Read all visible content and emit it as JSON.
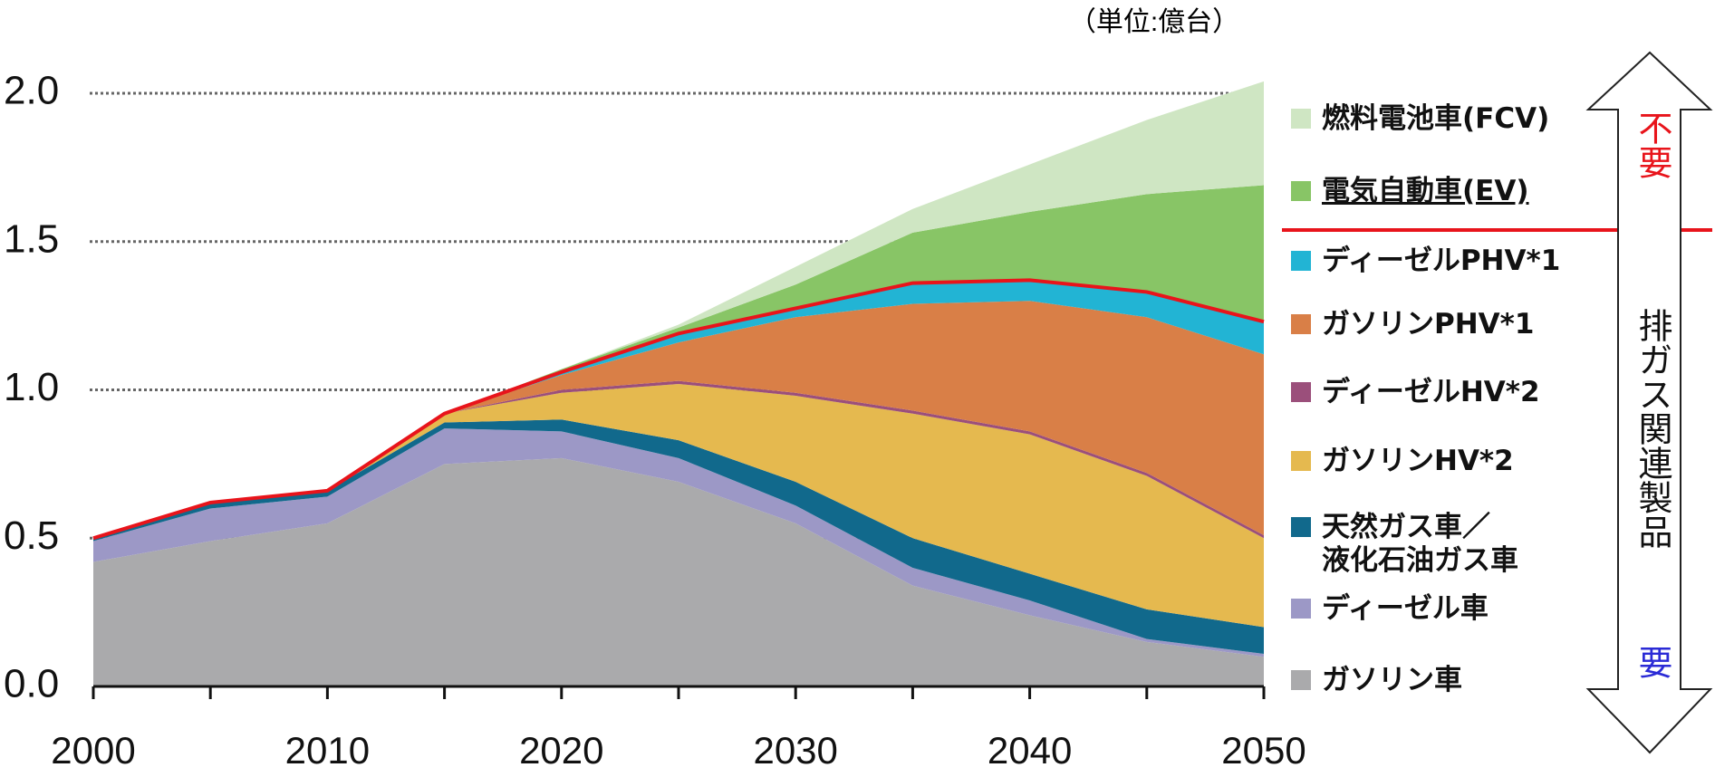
{
  "chart_data": {
    "type": "stacked_area",
    "unit_label": "（単位:億台）",
    "x": [
      2000,
      2005,
      2010,
      2015,
      2020,
      2025,
      2030,
      2035,
      2040,
      2045,
      2050
    ],
    "xlim": [
      2000,
      2050
    ],
    "xticks": [
      2000,
      2010,
      2020,
      2030,
      2040,
      2050
    ],
    "ylim": [
      0,
      2
    ],
    "yticks": [
      {
        "value": 0,
        "label": "0.0"
      },
      0.5,
      {
        "value": 1,
        "label": "1.0"
      },
      1.5,
      {
        "value": 2,
        "label": "2.0"
      }
    ],
    "grid": true,
    "series": [
      {
        "name": "ガソリン車",
        "color": "#aaaaac",
        "values": [
          0.42,
          0.49,
          0.55,
          0.75,
          0.77,
          0.69,
          0.55,
          0.34,
          0.24,
          0.15,
          0.1
        ]
      },
      {
        "name": "ディーゼル車",
        "color": "#9c98c6",
        "values": [
          0.07,
          0.11,
          0.09,
          0.12,
          0.09,
          0.08,
          0.06,
          0.06,
          0.05,
          0.01,
          0.01
        ]
      },
      {
        "name": "天然ガス車／\n液化石油ガス車",
        "color": "#11698c",
        "values": [
          0.01,
          0.02,
          0.02,
          0.02,
          0.04,
          0.06,
          0.08,
          0.1,
          0.09,
          0.1,
          0.09
        ]
      },
      {
        "name": "ガソリンHV*2",
        "color": "#e5b94f",
        "values": [
          0,
          0,
          0,
          0.03,
          0.09,
          0.19,
          0.29,
          0.42,
          0.47,
          0.45,
          0.3
        ]
      },
      {
        "name": "ディーゼルHV*2",
        "color": "#9b4f7b",
        "values": [
          0,
          0,
          0,
          0,
          0.01,
          0.01,
          0.01,
          0.01,
          0.01,
          0.01,
          0.01
        ]
      },
      {
        "name": "ガソリンPHV*1",
        "color": "#d97f47",
        "values": [
          0,
          0,
          0,
          0,
          0.05,
          0.13,
          0.255,
          0.36,
          0.44,
          0.525,
          0.61
        ]
      },
      {
        "name": "ディーゼルPHV*1",
        "color": "#22b4d4",
        "values": [
          0,
          0,
          0,
          0,
          0.01,
          0.03,
          0.03,
          0.07,
          0.07,
          0.085,
          0.11
        ]
      },
      {
        "name": "電気自動車(EV)",
        "color": "#88c566",
        "underline": true,
        "values": [
          0,
          0,
          0,
          0,
          0.01,
          0.02,
          0.08,
          0.17,
          0.23,
          0.33,
          0.46
        ]
      },
      {
        "name": "燃料電池車(FCV)",
        "color": "#cfe6c3",
        "values": [
          0,
          0,
          0,
          0,
          0,
          0.01,
          0.06,
          0.08,
          0.16,
          0.25,
          0.35
        ]
      }
    ],
    "side_labels": {
      "unneeded": "不要",
      "related": "排ガス関連製品",
      "needed": "要"
    }
  }
}
